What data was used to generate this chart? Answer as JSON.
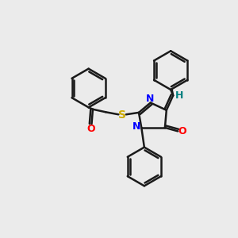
{
  "bg_color": "#ebebeb",
  "bond_color": "#1a1a1a",
  "N_color": "#0000ff",
  "O_color": "#ff0000",
  "S_color": "#ccaa00",
  "H_color": "#008080",
  "line_width": 1.8,
  "font_size": 9,
  "ring_r": 0.82,
  "xlim": [
    0,
    10
  ],
  "ylim": [
    0,
    10
  ]
}
